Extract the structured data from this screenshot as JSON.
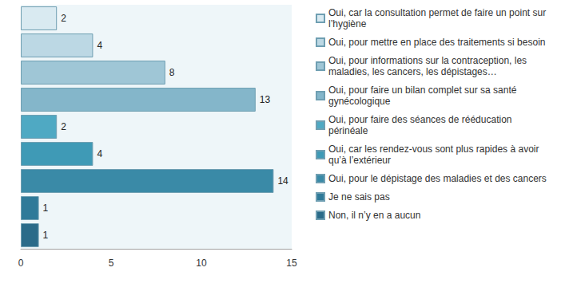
{
  "chart_data": {
    "type": "bar",
    "orientation": "horizontal",
    "categories": [
      "Oui, car la consultation permet de faire un point sur l’hygiène",
      "Oui, pour mettre en place des traitements si besoin",
      "Oui, pour informations sur la contraception, les maladies, les cancers, les dépistages…",
      "Oui, pour faire un bilan complet sur sa santé gynécologique",
      "Oui, pour faire des séances de rééducation périnéale",
      "Oui, car les rendez-vous sont plus rapides à avoir qu’à l’extérieur",
      "Oui, pour le dépistage des maladies et des cancers",
      "Je ne sais pas",
      "Non, il n’y en a aucun"
    ],
    "values": [
      2,
      4,
      8,
      13,
      2,
      4,
      14,
      1,
      1
    ],
    "colors": [
      "#d9eaf1",
      "#bcd8e4",
      "#9fc6d6",
      "#84b6ca",
      "#4fa9c3",
      "#3f9ab6",
      "#3a8aa7",
      "#2f7a99",
      "#2a6b89"
    ],
    "xlim": [
      0,
      15
    ],
    "xticks": [
      0,
      5,
      10,
      15
    ],
    "data_labels": true,
    "tick_labels": "x",
    "grid": false,
    "legend": "right"
  }
}
